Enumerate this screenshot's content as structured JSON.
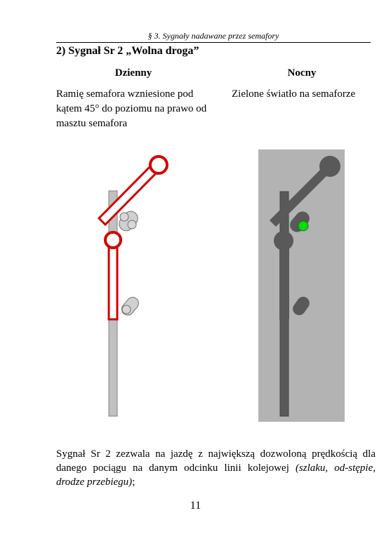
{
  "header": "§ 3. Sygnały nadawane przez semafory",
  "section_title": "2) Sygnał Sr 2 „Wolna droga”",
  "day": {
    "heading": "Dzienny",
    "description": "Ramię semafora wzniesione pod kątem 45° do poziomu na prawo od masztu semafora"
  },
  "night": {
    "heading": "Nocny",
    "description": "Zielone światło na semaforze"
  },
  "colors": {
    "arm_red": "#d40000",
    "mast_gray": "#c0c0c0",
    "night_bg": "#b3b3b3",
    "night_mast": "#595959",
    "green_light": "#00e000"
  },
  "paragraph": {
    "main": "Sygnał Sr 2 zezwala na jazdę z największą dozwoloną prędkością dla danego pociągu na danym odcinku linii kolejowej ",
    "italic": "(szlaku, od-stępie, drodze przebiegu)",
    "end": ";"
  },
  "page_number": "11"
}
